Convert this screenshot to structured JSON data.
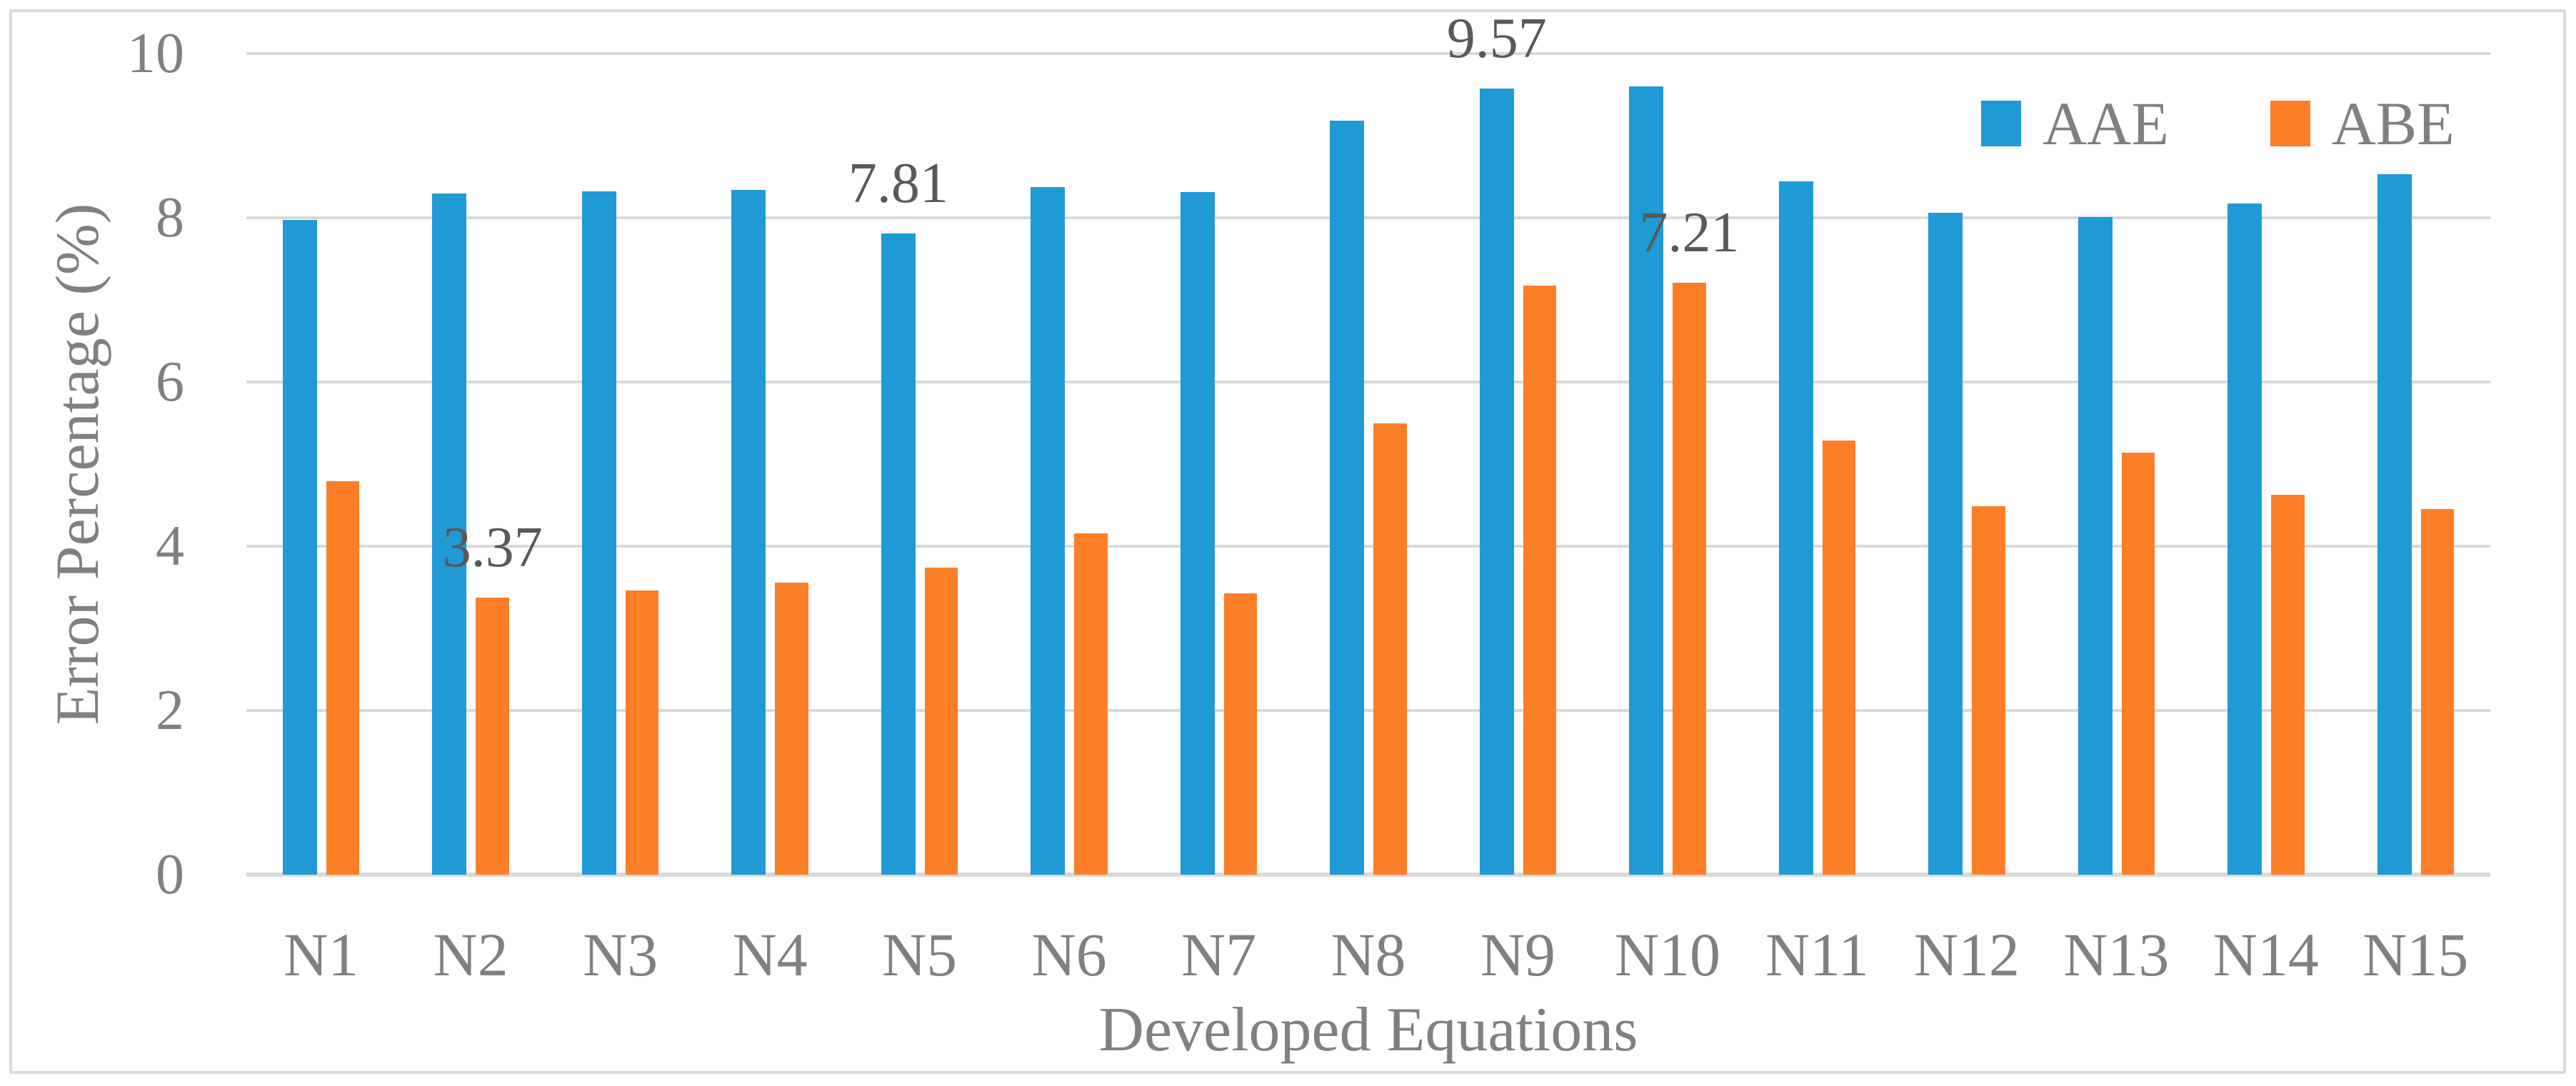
{
  "chart_data": {
    "type": "bar",
    "title": "",
    "xlabel": "Developed Equations",
    "ylabel": "Error Percentage (%)",
    "ylim": [
      0,
      10
    ],
    "yticks": [
      0,
      2,
      4,
      6,
      8,
      10
    ],
    "grid": true,
    "legend_position": "top-right",
    "categories": [
      "N1",
      "N2",
      "N3",
      "N4",
      "N5",
      "N6",
      "N7",
      "N8",
      "N9",
      "N10",
      "N11",
      "N12",
      "N13",
      "N14",
      "N15"
    ],
    "series": [
      {
        "name": "AAE",
        "color": "#1F9AD5",
        "values": [
          7.97,
          8.3,
          8.32,
          8.34,
          7.81,
          8.37,
          8.31,
          9.18,
          9.57,
          9.6,
          8.44,
          8.06,
          8.01,
          8.17,
          8.53
        ]
      },
      {
        "name": "ABE",
        "color": "#FC7E26",
        "values": [
          4.79,
          3.37,
          3.46,
          3.56,
          3.74,
          4.16,
          3.43,
          5.5,
          7.17,
          7.21,
          5.29,
          4.49,
          5.14,
          4.63,
          4.45
        ]
      }
    ],
    "data_labels": [
      {
        "series": "AAE",
        "category": "N5",
        "text": "7.81"
      },
      {
        "series": "ABE",
        "category": "N2",
        "text": "3.37"
      },
      {
        "series": "AAE",
        "category": "N9",
        "text": "9.57"
      },
      {
        "series": "ABE",
        "category": "N10",
        "text": "7.21"
      }
    ],
    "colors": {
      "gridline": "#D9D9D9",
      "axis_line": "#D9D9D9",
      "frame_border": "#D9D9D9",
      "axis_text": "#808080",
      "data_label_text": "#595959"
    }
  }
}
